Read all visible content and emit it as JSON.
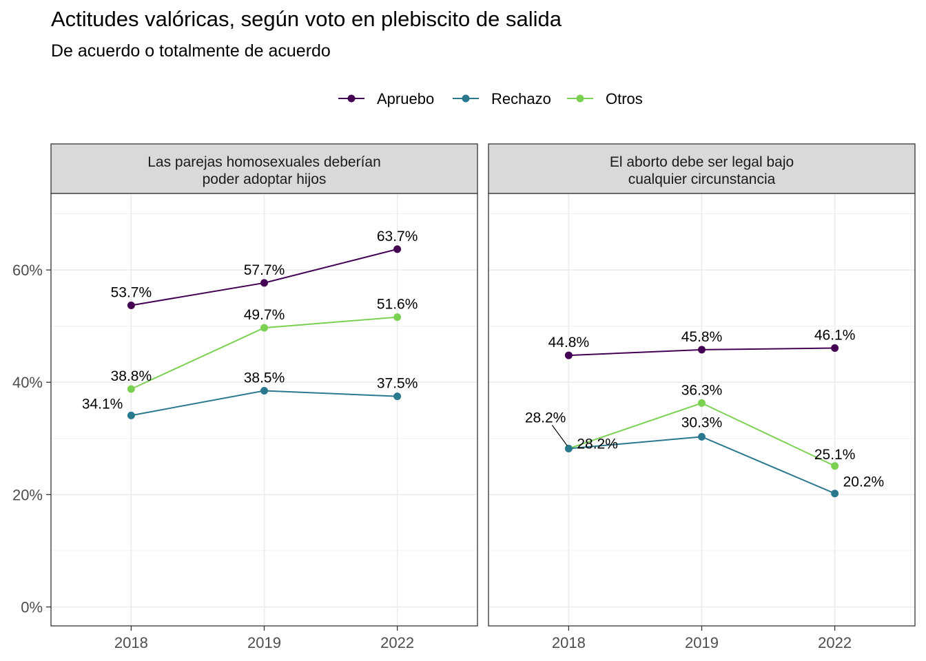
{
  "chart_data": {
    "type": "line",
    "title": "Actitudes valóricas, según voto en plebiscito de salida",
    "subtitle": "De acuerdo o totalmente de acuerdo",
    "legend_position": "top",
    "grid": true,
    "categories": [
      "2018",
      "2019",
      "2022"
    ],
    "y_ticks": [
      "0%",
      "20%",
      "40%",
      "60%"
    ],
    "y_tick_values": [
      0,
      20,
      40,
      60
    ],
    "ylim": [
      -3.5,
      73.5
    ],
    "series_colors": {
      "Apruebo": "#440154",
      "Rechazo": "#2a788e",
      "Otros": "#7ad151"
    },
    "legend": [
      "Apruebo",
      "Rechazo",
      "Otros"
    ],
    "panels": [
      {
        "title": [
          "Las parejas homosexuales deberían",
          "poder adoptar hijos"
        ],
        "series": [
          {
            "name": "Apruebo",
            "values": [
              53.7,
              57.7,
              63.7
            ],
            "labels": [
              "53.7%",
              "57.7%",
              "63.7%"
            ]
          },
          {
            "name": "Rechazo",
            "values": [
              34.1,
              38.5,
              37.5
            ],
            "labels": [
              "34.1%",
              "38.5%",
              "37.5%"
            ]
          },
          {
            "name": "Otros",
            "values": [
              38.8,
              49.7,
              51.6
            ],
            "labels": [
              "38.8%",
              "49.7%",
              "51.6%"
            ]
          }
        ]
      },
      {
        "title": [
          "El aborto debe ser legal bajo",
          "cualquier circunstancia"
        ],
        "series": [
          {
            "name": "Apruebo",
            "values": [
              44.8,
              45.8,
              46.1
            ],
            "labels": [
              "44.8%",
              "45.8%",
              "46.1%"
            ]
          },
          {
            "name": "Rechazo",
            "values": [
              28.2,
              30.3,
              20.2
            ],
            "labels": [
              "28.2%",
              "30.3%",
              "20.2%"
            ]
          },
          {
            "name": "Otros",
            "values": [
              28.2,
              36.3,
              25.1
            ],
            "labels": [
              "28.2%",
              "36.3%",
              "25.1%"
            ]
          }
        ]
      }
    ]
  }
}
